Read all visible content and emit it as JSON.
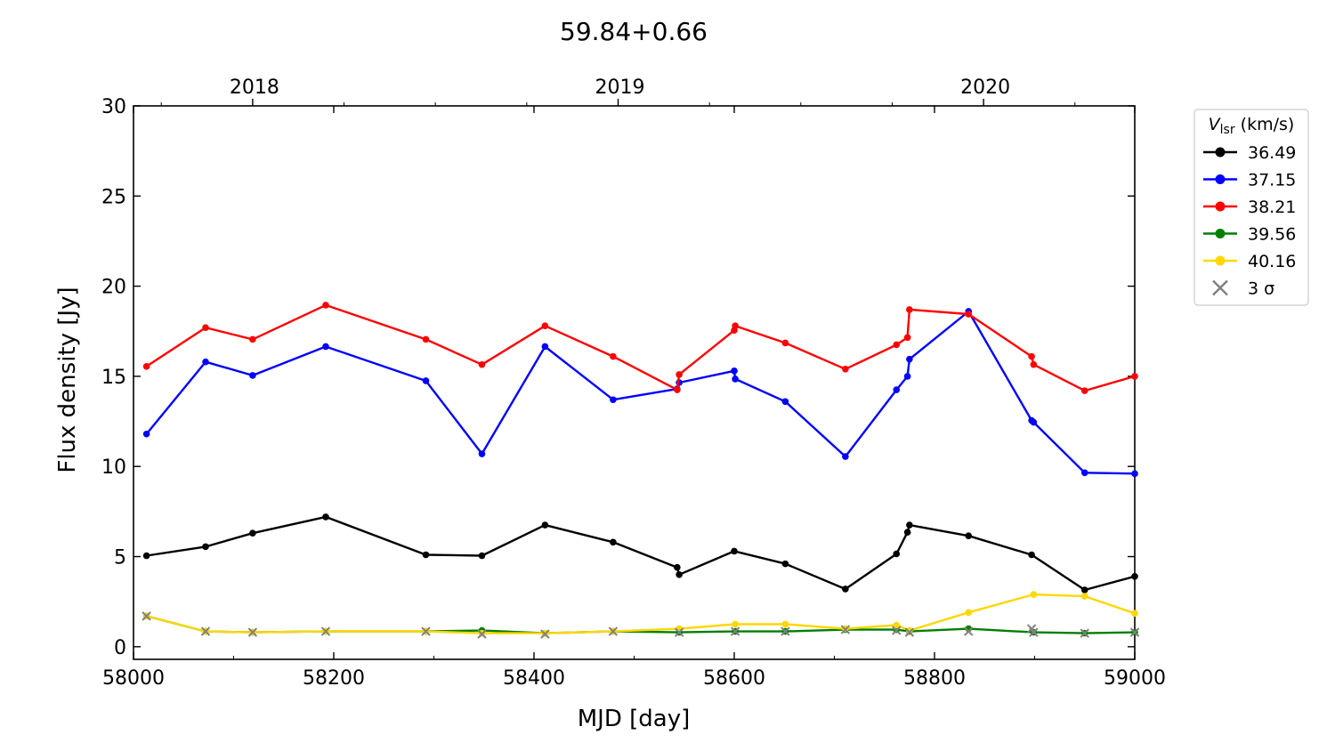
{
  "chart_data": {
    "type": "line",
    "title": "59.84+0.66",
    "xlabel": "MJD [day]",
    "ylabel": "Flux density [Jy]",
    "xlim": [
      58000,
      59000
    ],
    "ylim": [
      -0.7,
      30
    ],
    "xticks": [
      58000,
      58200,
      58400,
      58600,
      58800,
      59000
    ],
    "yticks": [
      0,
      5,
      10,
      15,
      20,
      25,
      30
    ],
    "top_axis": {
      "ticks": [
        58119,
        58484,
        58849
      ],
      "labels": [
        "2018",
        "2019",
        "2020"
      ]
    },
    "legend": {
      "title_main": "V",
      "title_sub": "lsr",
      "title_rest": " (km/s)",
      "position": "outside-right"
    },
    "series": [
      {
        "name": "36.49",
        "color": "#000000",
        "x": [
          58013,
          58072,
          58119,
          58192,
          58292,
          58348,
          58411,
          58479,
          58543,
          58545,
          58600,
          58651,
          58711,
          58762,
          58773,
          58775,
          58834,
          58897,
          58950,
          59000
        ],
        "y": [
          5.05,
          5.55,
          6.3,
          7.2,
          5.1,
          5.05,
          6.75,
          5.8,
          4.4,
          4.0,
          5.3,
          4.6,
          3.2,
          5.15,
          6.35,
          6.75,
          6.15,
          5.1,
          3.15,
          3.9
        ]
      },
      {
        "name": "37.15",
        "color": "#0000ff",
        "x": [
          58013,
          58072,
          58119,
          58192,
          58292,
          58348,
          58411,
          58479,
          58543,
          58545,
          58600,
          58601,
          58651,
          58711,
          58762,
          58773,
          58775,
          58834,
          58897,
          58899,
          58950,
          59000
        ],
        "y": [
          11.8,
          15.8,
          15.05,
          16.65,
          14.75,
          10.7,
          16.65,
          13.7,
          14.3,
          14.65,
          15.3,
          14.85,
          13.6,
          10.55,
          14.25,
          15.0,
          15.95,
          18.6,
          12.55,
          12.45,
          9.65,
          9.6
        ]
      },
      {
        "name": "38.21",
        "color": "#ff0000",
        "x": [
          58013,
          58072,
          58119,
          58192,
          58292,
          58348,
          58411,
          58479,
          58543,
          58545,
          58600,
          58601,
          58651,
          58711,
          58762,
          58773,
          58775,
          58834,
          58897,
          58899,
          58950,
          59000
        ],
        "y": [
          15.55,
          17.7,
          17.05,
          18.95,
          17.05,
          15.65,
          17.8,
          16.1,
          14.25,
          15.1,
          17.55,
          17.8,
          16.85,
          15.4,
          16.75,
          17.15,
          18.7,
          18.45,
          16.1,
          15.65,
          14.2,
          15.0
        ]
      },
      {
        "name": "39.56",
        "color": "#007f00",
        "x": [
          58013,
          58072,
          58119,
          58192,
          58292,
          58348,
          58411,
          58479,
          58545,
          58601,
          58651,
          58711,
          58762,
          58775,
          58834,
          58899,
          58950,
          59000
        ],
        "y": [
          1.7,
          0.85,
          0.8,
          0.85,
          0.85,
          0.9,
          0.75,
          0.85,
          0.8,
          0.85,
          0.85,
          0.95,
          0.95,
          0.85,
          1.0,
          0.8,
          0.75,
          0.8
        ]
      },
      {
        "name": "40.16",
        "color": "#ffd700",
        "x": [
          58013,
          58072,
          58119,
          58192,
          58292,
          58348,
          58411,
          58479,
          58545,
          58601,
          58651,
          58711,
          58762,
          58775,
          58834,
          58899,
          58950,
          59000
        ],
        "y": [
          1.7,
          0.85,
          0.8,
          0.85,
          0.85,
          0.75,
          0.75,
          0.85,
          1.0,
          1.25,
          1.25,
          1.0,
          1.2,
          0.9,
          1.9,
          2.9,
          2.8,
          1.85
        ]
      }
    ],
    "upper_limits": {
      "name": "3 σ",
      "color": "#808080",
      "x": [
        58013,
        58072,
        58119,
        58192,
        58292,
        58348,
        58411,
        58479,
        58545,
        58601,
        58651,
        58711,
        58762,
        58775,
        58834,
        58897,
        58899,
        58950,
        59000
      ],
      "y": [
        1.7,
        0.85,
        0.8,
        0.85,
        0.85,
        0.7,
        0.7,
        0.85,
        0.8,
        0.85,
        0.85,
        0.95,
        0.9,
        0.8,
        0.85,
        1.0,
        0.8,
        0.75,
        0.8
      ]
    }
  }
}
